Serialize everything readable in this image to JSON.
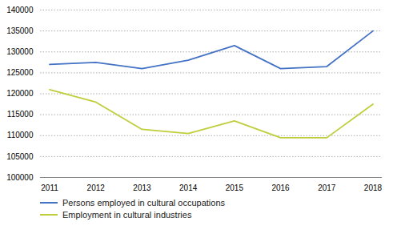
{
  "chart_data": {
    "type": "line",
    "x": [
      2011,
      2012,
      2013,
      2014,
      2015,
      2016,
      2017,
      2018
    ],
    "series": [
      {
        "name": "Persons employed in cultural occupations",
        "color": "#4472C4",
        "values": [
          127000,
          127500,
          126000,
          128000,
          131500,
          126000,
          126500,
          135000
        ]
      },
      {
        "name": "Employment in cultural industries",
        "color": "#BFCE3A",
        "values": [
          121000,
          118000,
          111500,
          110500,
          113500,
          109500,
          109500,
          117500
        ]
      }
    ],
    "xlim": [
      2010.8,
      2018.2
    ],
    "xticks": [
      2011,
      2012,
      2013,
      2014,
      2015,
      2016,
      2017,
      2018
    ],
    "ylim": [
      100000,
      140000
    ],
    "yticks": [
      100000,
      105000,
      110000,
      115000,
      120000,
      125000,
      130000,
      135000,
      140000
    ],
    "grid": true,
    "legend": "bottom"
  }
}
